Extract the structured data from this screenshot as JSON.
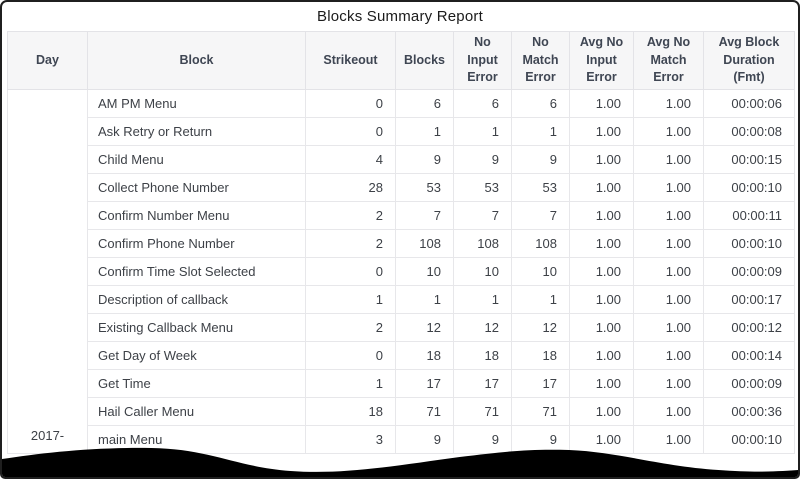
{
  "report": {
    "title": "Blocks Summary Report",
    "columns": [
      "Day",
      "Block",
      "Strikeout",
      "Blocks",
      "No Input Error",
      "No Match Error",
      "Avg No Input Error",
      "Avg No Match Error",
      "Avg Block Duration (Fmt)"
    ],
    "day_group_label_partial": "2017-",
    "rows": [
      {
        "block": "AM PM Menu",
        "strikeout": "0",
        "blocks": "6",
        "no_input_error": "6",
        "no_match_error": "6",
        "avg_no_input_error": "1.00",
        "avg_no_match_error": "1.00",
        "avg_block_duration": "00:00:06"
      },
      {
        "block": "Ask Retry or Return",
        "strikeout": "0",
        "blocks": "1",
        "no_input_error": "1",
        "no_match_error": "1",
        "avg_no_input_error": "1.00",
        "avg_no_match_error": "1.00",
        "avg_block_duration": "00:00:08"
      },
      {
        "block": "Child Menu",
        "strikeout": "4",
        "blocks": "9",
        "no_input_error": "9",
        "no_match_error": "9",
        "avg_no_input_error": "1.00",
        "avg_no_match_error": "1.00",
        "avg_block_duration": "00:00:15"
      },
      {
        "block": "Collect Phone Number",
        "strikeout": "28",
        "blocks": "53",
        "no_input_error": "53",
        "no_match_error": "53",
        "avg_no_input_error": "1.00",
        "avg_no_match_error": "1.00",
        "avg_block_duration": "00:00:10"
      },
      {
        "block": "Confirm Number Menu",
        "strikeout": "2",
        "blocks": "7",
        "no_input_error": "7",
        "no_match_error": "7",
        "avg_no_input_error": "1.00",
        "avg_no_match_error": "1.00",
        "avg_block_duration": "00:00:11"
      },
      {
        "block": "Confirm Phone Number",
        "strikeout": "2",
        "blocks": "108",
        "no_input_error": "108",
        "no_match_error": "108",
        "avg_no_input_error": "1.00",
        "avg_no_match_error": "1.00",
        "avg_block_duration": "00:00:10"
      },
      {
        "block": "Confirm Time Slot Selected",
        "strikeout": "0",
        "blocks": "10",
        "no_input_error": "10",
        "no_match_error": "10",
        "avg_no_input_error": "1.00",
        "avg_no_match_error": "1.00",
        "avg_block_duration": "00:00:09"
      },
      {
        "block": "Description of callback",
        "strikeout": "1",
        "blocks": "1",
        "no_input_error": "1",
        "no_match_error": "1",
        "avg_no_input_error": "1.00",
        "avg_no_match_error": "1.00",
        "avg_block_duration": "00:00:17"
      },
      {
        "block": "Existing Callback Menu",
        "strikeout": "2",
        "blocks": "12",
        "no_input_error": "12",
        "no_match_error": "12",
        "avg_no_input_error": "1.00",
        "avg_no_match_error": "1.00",
        "avg_block_duration": "00:00:12"
      },
      {
        "block": "Get Day of Week",
        "strikeout": "0",
        "blocks": "18",
        "no_input_error": "18",
        "no_match_error": "18",
        "avg_no_input_error": "1.00",
        "avg_no_match_error": "1.00",
        "avg_block_duration": "00:00:14"
      },
      {
        "block": "Get Time",
        "strikeout": "1",
        "blocks": "17",
        "no_input_error": "17",
        "no_match_error": "17",
        "avg_no_input_error": "1.00",
        "avg_no_match_error": "1.00",
        "avg_block_duration": "00:00:09"
      },
      {
        "block": "Hail Caller Menu",
        "strikeout": "18",
        "blocks": "71",
        "no_input_error": "71",
        "no_match_error": "71",
        "avg_no_input_error": "1.00",
        "avg_no_match_error": "1.00",
        "avg_block_duration": "00:00:36"
      },
      {
        "block": "main Menu",
        "strikeout": "3",
        "blocks": "9",
        "no_input_error": "9",
        "no_match_error": "9",
        "avg_no_input_error": "1.00",
        "avg_no_match_error": "1.00",
        "avg_block_duration": "00:00:10"
      }
    ]
  },
  "colors": {
    "frame_border": "#1f1f1f",
    "header_bg": "#f6f6f7",
    "header_text": "#3f4653",
    "body_text": "#3d4147",
    "grid_line": "#e7e7ea",
    "torn_edge": "#000000"
  }
}
